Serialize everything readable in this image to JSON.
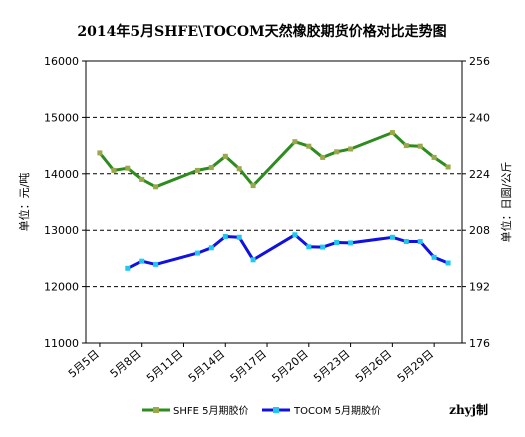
{
  "chart_data": {
    "type": "line",
    "title": "2014年5月SHFE\\TOCOM天然橡胶期货价格对比走势图",
    "ylabel_left": "单位：元/吨",
    "ylabel_right": "单位：日圆/公斤",
    "ylim_left": [
      11000,
      16000
    ],
    "ylim_right": [
      176,
      256
    ],
    "yticks_left": [
      "11000",
      "12000",
      "13000",
      "14000",
      "15000",
      "16000"
    ],
    "yticks_right": [
      "176",
      "192",
      "208",
      "224",
      "240",
      "256"
    ],
    "x_range": [
      "2014-05-04",
      "2014-05-31"
    ],
    "xtick_labels": [
      {
        "date": "2014-05-05",
        "label": "5月5日"
      },
      {
        "date": "2014-05-08",
        "label": "5月8日"
      },
      {
        "date": "2014-05-11",
        "label": "5月11日"
      },
      {
        "date": "2014-05-14",
        "label": "5月14日"
      },
      {
        "date": "2014-05-17",
        "label": "5月17日"
      },
      {
        "date": "2014-05-20",
        "label": "5月20日"
      },
      {
        "date": "2014-05-23",
        "label": "5月23日"
      },
      {
        "date": "2014-05-26",
        "label": "5月26日"
      },
      {
        "date": "2014-05-29",
        "label": "5月29日"
      }
    ],
    "grid_y": true,
    "legend_position": "bottom",
    "series": [
      {
        "name": "SHFE 5月期胶价",
        "axis": "left",
        "color": "#2e8b1f",
        "marker_color": "#9aa84a",
        "points": [
          {
            "x": "2014-05-05",
            "y": 14370
          },
          {
            "x": "2014-05-06",
            "y": 14060
          },
          {
            "x": "2014-05-07",
            "y": 14100
          },
          {
            "x": "2014-05-08",
            "y": 13900
          },
          {
            "x": "2014-05-09",
            "y": 13770
          },
          {
            "x": "2014-05-12",
            "y": 14060
          },
          {
            "x": "2014-05-13",
            "y": 14110
          },
          {
            "x": "2014-05-14",
            "y": 14310
          },
          {
            "x": "2014-05-15",
            "y": 14090
          },
          {
            "x": "2014-05-16",
            "y": 13790
          },
          {
            "x": "2014-05-19",
            "y": 14570
          },
          {
            "x": "2014-05-20",
            "y": 14490
          },
          {
            "x": "2014-05-21",
            "y": 14290
          },
          {
            "x": "2014-05-22",
            "y": 14390
          },
          {
            "x": "2014-05-23",
            "y": 14440
          },
          {
            "x": "2014-05-26",
            "y": 14730
          },
          {
            "x": "2014-05-27",
            "y": 14500
          },
          {
            "x": "2014-05-28",
            "y": 14490
          },
          {
            "x": "2014-05-29",
            "y": 14290
          },
          {
            "x": "2014-05-30",
            "y": 14120
          }
        ]
      },
      {
        "name": "TOCOM 5月期胶价",
        "axis": "right",
        "color": "#1010e0",
        "marker_color": "#20c8f0",
        "points": [
          {
            "x": "2014-05-07",
            "y": 197.2
          },
          {
            "x": "2014-05-08",
            "y": 199.2
          },
          {
            "x": "2014-05-09",
            "y": 198.3
          },
          {
            "x": "2014-05-12",
            "y": 201.5
          },
          {
            "x": "2014-05-13",
            "y": 203.0
          },
          {
            "x": "2014-05-14",
            "y": 206.2
          },
          {
            "x": "2014-05-15",
            "y": 206.0
          },
          {
            "x": "2014-05-16",
            "y": 199.6
          },
          {
            "x": "2014-05-19",
            "y": 206.7
          },
          {
            "x": "2014-05-20",
            "y": 203.3
          },
          {
            "x": "2014-05-21",
            "y": 203.2
          },
          {
            "x": "2014-05-22",
            "y": 204.5
          },
          {
            "x": "2014-05-23",
            "y": 204.4
          },
          {
            "x": "2014-05-26",
            "y": 206.0
          },
          {
            "x": "2014-05-27",
            "y": 204.8
          },
          {
            "x": "2014-05-28",
            "y": 204.8
          },
          {
            "x": "2014-05-29",
            "y": 200.3
          },
          {
            "x": "2014-05-30",
            "y": 198.7
          }
        ]
      }
    ],
    "credit": "zhyj制"
  }
}
